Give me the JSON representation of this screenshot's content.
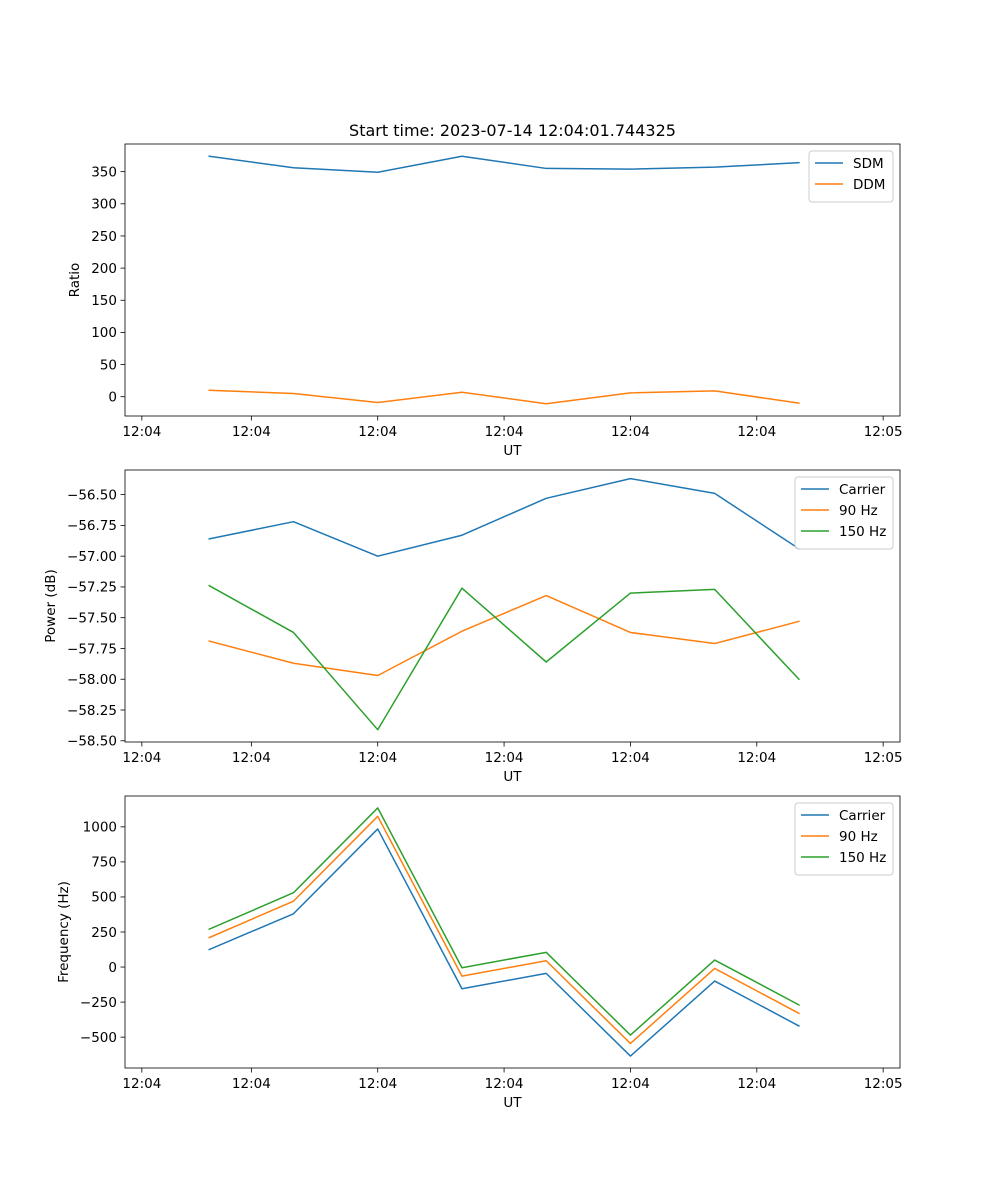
{
  "colors": {
    "series_1": "#1f77b4",
    "series_2": "#ff7f0e",
    "series_3": "#2ca02c"
  },
  "chart_data": [
    {
      "type": "line",
      "title": "Start time: 2023-07-14 12:04:01.744325",
      "xlabel": "UT",
      "ylabel": "Ratio",
      "x": [
        1,
        2,
        3,
        4,
        5,
        6,
        7,
        8
      ],
      "xlim": [
        0,
        9.2
      ],
      "xticks": [
        0.2,
        1.5,
        3.0,
        4.5,
        6.0,
        7.5,
        9.0
      ],
      "xtick_labels": [
        "12:04",
        "12:04",
        "12:04",
        "12:04",
        "12:04",
        "12:04",
        "12:05"
      ],
      "ylim": [
        -30,
        393
      ],
      "yticks": [
        0,
        50,
        100,
        150,
        200,
        250,
        300,
        350
      ],
      "ytick_labels": [
        "0",
        "50",
        "100",
        "150",
        "200",
        "250",
        "300",
        "350"
      ],
      "legend_position": "top-right",
      "series": [
        {
          "name": "SDM",
          "values": [
            374,
            356,
            349,
            374,
            355,
            354,
            357,
            364
          ]
        },
        {
          "name": "DDM",
          "values": [
            10,
            5,
            -9,
            7,
            -11,
            6,
            9,
            -10
          ]
        }
      ]
    },
    {
      "type": "line",
      "title": "",
      "xlabel": "UT",
      "ylabel": "Power (dB)",
      "x": [
        1,
        2,
        3,
        4,
        5,
        6,
        7,
        8
      ],
      "xlim": [
        0,
        9.2
      ],
      "xticks": [
        0.2,
        1.5,
        3.0,
        4.5,
        6.0,
        7.5,
        9.0
      ],
      "xtick_labels": [
        "12:04",
        "12:04",
        "12:04",
        "12:04",
        "12:04",
        "12:04",
        "12:05"
      ],
      "ylim": [
        -58.51,
        -56.3
      ],
      "yticks": [
        -58.5,
        -58.25,
        -58.0,
        -57.75,
        -57.5,
        -57.25,
        -57.0,
        -56.75,
        -56.5
      ],
      "ytick_labels": [
        "−58.50",
        "−58.25",
        "−58.00",
        "−57.75",
        "−57.50",
        "−57.25",
        "−57.00",
        "−56.75",
        "−56.50"
      ],
      "legend_position": "top-right",
      "series": [
        {
          "name": "Carrier",
          "values": [
            -56.86,
            -56.72,
            -57.0,
            -56.83,
            -56.53,
            -56.37,
            -56.49,
            -56.94
          ]
        },
        {
          "name": "90 Hz",
          "values": [
            -57.69,
            -57.87,
            -57.97,
            -57.61,
            -57.32,
            -57.62,
            -57.71,
            -57.53
          ]
        },
        {
          "name": "150 Hz",
          "values": [
            -57.24,
            -57.62,
            -58.41,
            -57.26,
            -57.86,
            -57.3,
            -57.27,
            -58.0
          ]
        }
      ]
    },
    {
      "type": "line",
      "title": "",
      "xlabel": "UT",
      "ylabel": "Frequency (Hz)",
      "x": [
        1,
        2,
        3,
        4,
        5,
        6,
        7,
        8
      ],
      "xlim": [
        0,
        9.2
      ],
      "xticks": [
        0.2,
        1.5,
        3.0,
        4.5,
        6.0,
        7.5,
        9.0
      ],
      "xtick_labels": [
        "12:04",
        "12:04",
        "12:04",
        "12:04",
        "12:04",
        "12:04",
        "12:05"
      ],
      "ylim": [
        -720,
        1220
      ],
      "yticks": [
        -500,
        -250,
        0,
        250,
        500,
        750,
        1000
      ],
      "ytick_labels": [
        "−500",
        "−250",
        "0",
        "250",
        "500",
        "750",
        "1000"
      ],
      "legend_position": "top-right",
      "series": [
        {
          "name": "Carrier",
          "values": [
            125,
            380,
            985,
            -155,
            -45,
            -635,
            -100,
            -420
          ]
        },
        {
          "name": "90 Hz",
          "values": [
            210,
            470,
            1075,
            -65,
            45,
            -545,
            -10,
            -330
          ]
        },
        {
          "name": "150 Hz",
          "values": [
            270,
            530,
            1135,
            -5,
            105,
            -485,
            50,
            -270
          ]
        }
      ]
    }
  ]
}
